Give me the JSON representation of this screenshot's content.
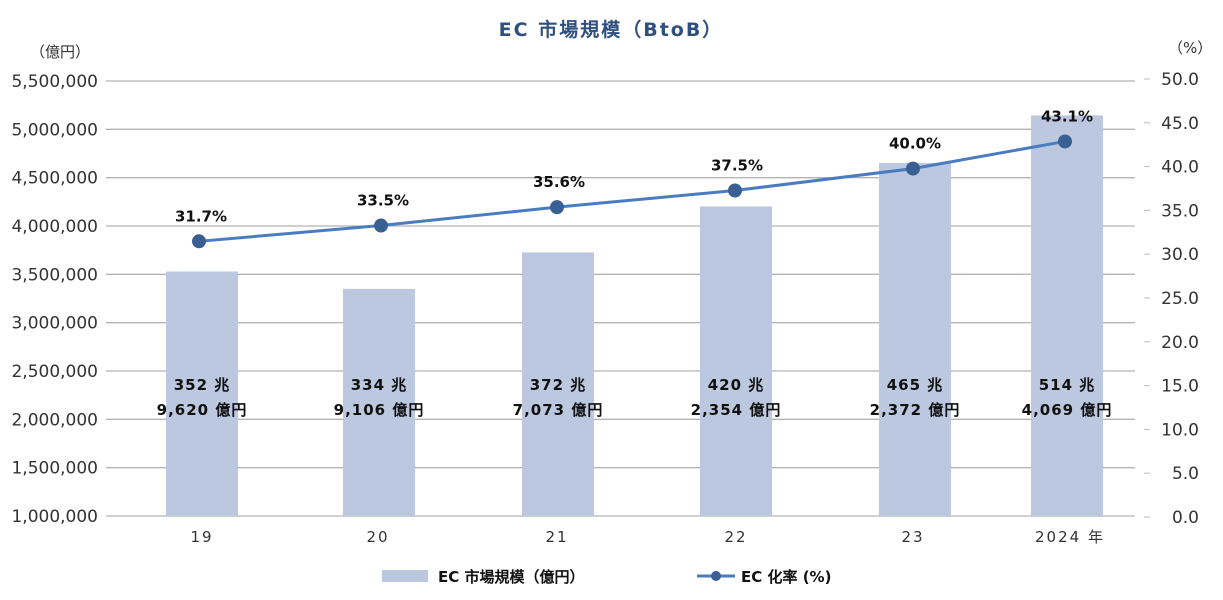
{
  "chart_data": {
    "type": "bar+line",
    "title": "EC 市場規模（BtoB）",
    "categories": [
      "19",
      "20",
      "21",
      "22",
      "23",
      "2024 年"
    ],
    "series": [
      {
        "name": "EC 市場規模（億円）",
        "type": "bar",
        "axis": "left",
        "color": "#bcc8e0",
        "values": [
          3529620,
          3349106,
          3727073,
          4202354,
          4652372,
          5144069
        ],
        "labels": [
          [
            "352 兆",
            "9,620 億円"
          ],
          [
            "334 兆",
            "9,106 億円"
          ],
          [
            "372 兆",
            "7,073 億円"
          ],
          [
            "420 兆",
            "2,354 億円"
          ],
          [
            "465 兆",
            "2,372 億円"
          ],
          [
            "514 兆",
            "4,069 億円"
          ]
        ]
      },
      {
        "name": "EC 化率 (%)",
        "type": "line",
        "axis": "right",
        "color": "#4a7cc0",
        "marker_color": "#3a5f92",
        "values": [
          31.7,
          33.5,
          35.6,
          37.5,
          40.0,
          43.1
        ],
        "labels": [
          "31.7%",
          "33.5%",
          "35.6%",
          "37.5%",
          "40.0%",
          "43.1%"
        ]
      }
    ],
    "left_axis": {
      "unit_label": "（億円）",
      "ylim": [
        1000000,
        5500000
      ],
      "ticks": [
        "5,500,000",
        "5,000,000",
        "4,500,000",
        "4,000,000",
        "3,500,000",
        "3,000,000",
        "2,500,000",
        "2,000,000",
        "1,500,000",
        "1,000,000"
      ]
    },
    "right_axis": {
      "unit_label": "（%）",
      "ylim": [
        0,
        50
      ],
      "ticks": [
        "50.0",
        "45.0",
        "40.0",
        "35.0",
        "30.0",
        "25.0",
        "20.0",
        "15.0",
        "10.0",
        "5.0",
        "0.0"
      ]
    },
    "grid": true,
    "legend_position": "bottom",
    "legend": [
      "EC 市場規模（億円）",
      "EC 化率 (%)"
    ]
  }
}
